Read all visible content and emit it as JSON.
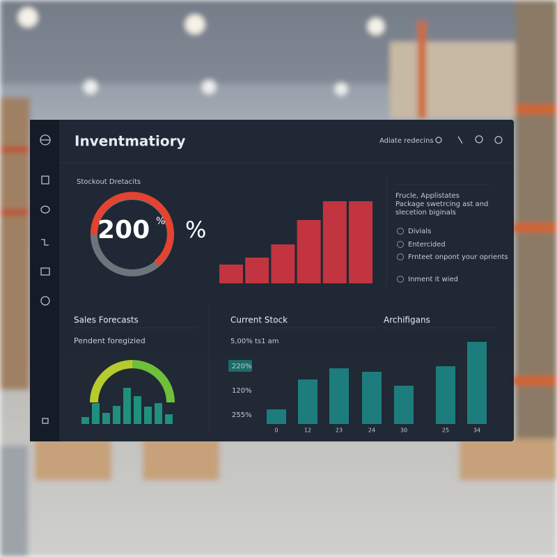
{
  "header": {
    "title": "Inventmatiory",
    "action": "Adiate redecins"
  },
  "stockout": {
    "title": "Stockout Dretacits",
    "value": "200",
    "unit_small": "%",
    "unit": "%",
    "bars": [
      27,
      37,
      56,
      91,
      118,
      118
    ]
  },
  "info_panel": {
    "title": "Frucle, Applistates",
    "description": [
      "Package swetrcing ast and",
      "slecetion biginals"
    ],
    "options": [
      "Divials",
      "Entercided",
      "Frnteet onpont your oprients",
      "Inment it wied"
    ]
  },
  "sales_forecasts": {
    "title": "Sales Forecasts",
    "subtitle": "Pendent foregizied",
    "bars": [
      10,
      30,
      16,
      26,
      52,
      40,
      25,
      30,
      14
    ]
  },
  "current_stock": {
    "title": "Current Stock",
    "subtitle": "5,00% ts1 am",
    "labels": [
      "220%",
      "120%",
      "255%"
    ]
  },
  "archifigans": {
    "title": "Archifigans",
    "categories": [
      "0",
      "12",
      "23",
      "24",
      "30",
      "25",
      "34"
    ],
    "values": [
      21,
      64,
      80,
      75,
      55,
      83,
      118
    ]
  }
}
